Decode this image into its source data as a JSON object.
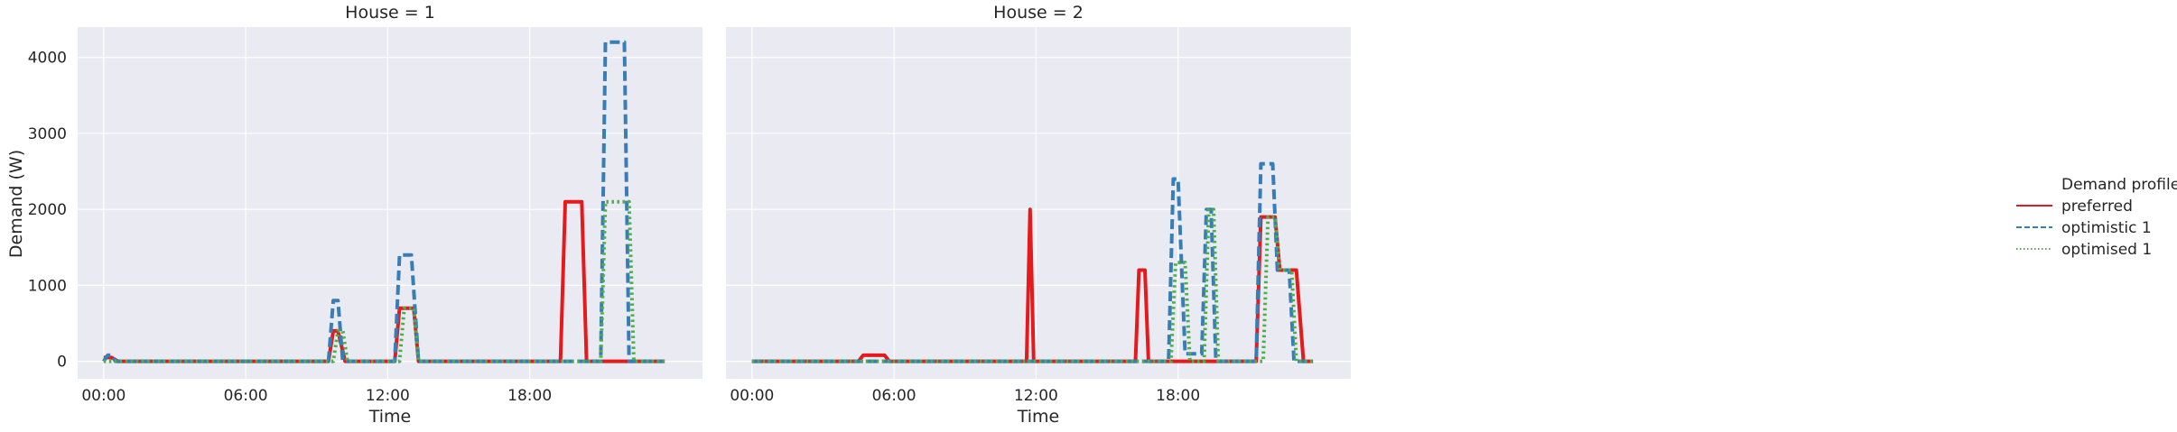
{
  "chart_data": {
    "type": "line",
    "ylabel": "Demand (W)",
    "xlabel": "Time",
    "x_ticks": [
      "00:00",
      "06:00",
      "12:00",
      "18:00"
    ],
    "y_ticks": [
      0,
      1000,
      2000,
      3000,
      4000
    ],
    "ylim": [
      -230,
      4400
    ],
    "xlim_hours": [
      -1.1,
      25.3
    ],
    "grid": true,
    "legend": {
      "title": "Demand profile",
      "placement": "right",
      "entries": [
        "preferred",
        "optimistic 1",
        "optimised 1"
      ]
    },
    "colors": {
      "preferred": "#e41a1c",
      "optimistic 1": "#377eb8",
      "optimised 1": "#4daf4a"
    },
    "styles": {
      "preferred": "solid",
      "optimistic 1": "dashed",
      "optimised 1": "dotted"
    },
    "panels": [
      {
        "title": "House = 1",
        "series": [
          {
            "name": "preferred",
            "x": [
              0,
              0.33,
              0.6,
              9.5,
              9.7,
              9.9,
              10.2,
              12.3,
              12.5,
              13.1,
              13.3,
              19.3,
              19.5,
              20.2,
              20.4,
              23.7
            ],
            "y": [
              50,
              50,
              0,
              0,
              400,
              400,
              0,
              0,
              700,
              700,
              0,
              0,
              2100,
              2100,
              0,
              0
            ]
          },
          {
            "name": "optimistic 1",
            "x": [
              0,
              0.17,
              0.33,
              0.5,
              9.5,
              9.7,
              9.9,
              10.1,
              12.3,
              12.5,
              13.0,
              13.3,
              21.0,
              21.2,
              22.0,
              22.2,
              23.7
            ],
            "y": [
              0,
              80,
              80,
              0,
              0,
              800,
              800,
              0,
              0,
              1400,
              1400,
              0,
              0,
              4200,
              4200,
              0,
              0
            ]
          },
          {
            "name": "optimised 1",
            "x": [
              0,
              9.7,
              9.9,
              10.1,
              10.3,
              12.5,
              12.7,
              13.1,
              13.3,
              21.0,
              21.2,
              22.2,
              22.4,
              23.7
            ],
            "y": [
              0,
              0,
              400,
              400,
              0,
              0,
              700,
              700,
              0,
              0,
              2100,
              2100,
              0,
              0
            ]
          }
        ]
      },
      {
        "title": "House = 2",
        "series": [
          {
            "name": "preferred",
            "x": [
              0,
              4.5,
              4.7,
              5.6,
              5.8,
              11.6,
              11.75,
              11.9,
              16.2,
              16.35,
              16.6,
              16.75,
              21.3,
              21.5,
              22.1,
              22.3,
              23.0,
              23.3,
              23.6,
              23.7
            ],
            "y": [
              0,
              0,
              80,
              80,
              0,
              0,
              2000,
              0,
              0,
              1200,
              1200,
              0,
              0,
              1900,
              1900,
              1200,
              1200,
              0,
              0,
              0
            ]
          },
          {
            "name": "optimistic 1",
            "x": [
              0,
              17.6,
              17.8,
              18.0,
              18.3,
              19.0,
              19.2,
              19.4,
              19.6,
              21.3,
              21.5,
              22.0,
              22.2,
              22.7,
              22.9,
              23.7
            ],
            "y": [
              0,
              0,
              2400,
              2400,
              100,
              100,
              2000,
              2000,
              0,
              0,
              2600,
              2600,
              1200,
              1200,
              0,
              0
            ]
          },
          {
            "name": "optimised 1",
            "x": [
              0,
              17.7,
              17.9,
              18.3,
              18.5,
              19.1,
              19.3,
              19.5,
              19.7,
              21.6,
              21.8,
              22.1,
              22.3,
              22.8,
              23.0,
              23.7
            ],
            "y": [
              0,
              0,
              1300,
              1300,
              0,
              0,
              2000,
              2000,
              0,
              0,
              1900,
              1900,
              1200,
              1200,
              0,
              0
            ]
          }
        ]
      }
    ]
  }
}
